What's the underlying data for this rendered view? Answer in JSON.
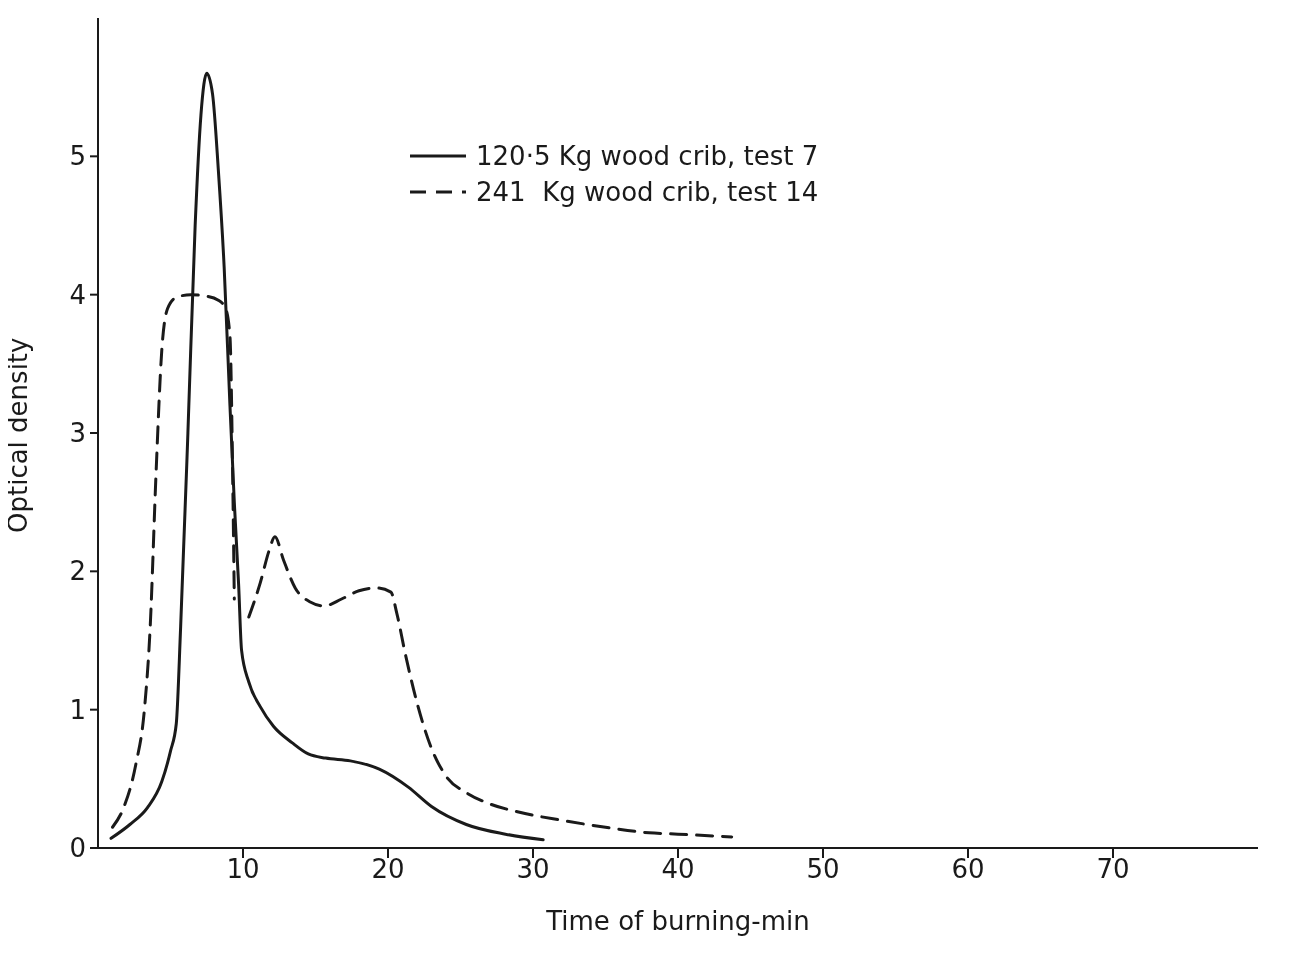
{
  "chart_data": {
    "type": "line",
    "xlabel": "Time of burning-min",
    "ylabel": "Optical density",
    "xlim": [
      0,
      80
    ],
    "xticks": [
      10,
      20,
      30,
      40,
      50,
      60,
      70
    ],
    "ylim": [
      0,
      6
    ],
    "yticks": [
      0,
      1,
      2,
      3,
      4,
      5
    ],
    "legend": "top",
    "grid": false,
    "marker": "none",
    "series": [
      {
        "name": "120·5 Kg wood crib, test 7",
        "color": "#1a1a1a",
        "line_style": "solid",
        "x": [
          0.9,
          2.2,
          3.4,
          4.4,
          5.0,
          5.4,
          5.7,
          6.2,
          6.7,
          7.1,
          7.5,
          7.9,
          8.3,
          8.7,
          9.1,
          9.4,
          9.7,
          9.9,
          10.4,
          11.2,
          12.1,
          13.4,
          14.5,
          15.7,
          17.4,
          19.4,
          21.4,
          23.0,
          25.4,
          28.1,
          30.7
        ],
        "values": [
          0.07,
          0.17,
          0.29,
          0.48,
          0.7,
          0.9,
          1.6,
          3.0,
          4.5,
          5.3,
          5.6,
          5.45,
          4.9,
          4.2,
          3.2,
          2.5,
          1.9,
          1.43,
          1.2,
          1.02,
          0.88,
          0.76,
          0.68,
          0.65,
          0.63,
          0.57,
          0.44,
          0.3,
          0.17,
          0.1,
          0.06
        ]
      },
      {
        "name": "241  Kg wood crib, test 14",
        "color": "#1a1a1a",
        "line_style": "dashed",
        "x": [
          1.0,
          1.8,
          2.6,
          3.2,
          3.6,
          4.0,
          4.4,
          4.8,
          5.4,
          6.4,
          7.4,
          8.3,
          8.8,
          9.1,
          9.3,
          9.4,
          9.8,
          10.4,
          11.2,
          11.8,
          12.2,
          12.8,
          13.6,
          14.6,
          15.6,
          16.8,
          18.0,
          19.2,
          20.2,
          20.6,
          21.2,
          22.0,
          23.0,
          24.0,
          25.4,
          27.0,
          29.0,
          32.0,
          35.0,
          38.0,
          40.0,
          43.7
        ],
        "values": [
          0.15,
          0.3,
          0.6,
          1.0,
          1.6,
          2.7,
          3.6,
          3.9,
          3.98,
          4.0,
          3.99,
          3.96,
          3.9,
          3.7,
          2.6,
          1.8,
          null,
          1.67,
          1.92,
          2.15,
          2.25,
          2.08,
          1.88,
          1.78,
          1.75,
          1.8,
          1.86,
          1.88,
          1.85,
          1.7,
          1.4,
          1.05,
          0.72,
          0.52,
          0.4,
          0.32,
          0.26,
          0.2,
          0.15,
          0.11,
          0.1,
          0.08
        ]
      }
    ]
  }
}
